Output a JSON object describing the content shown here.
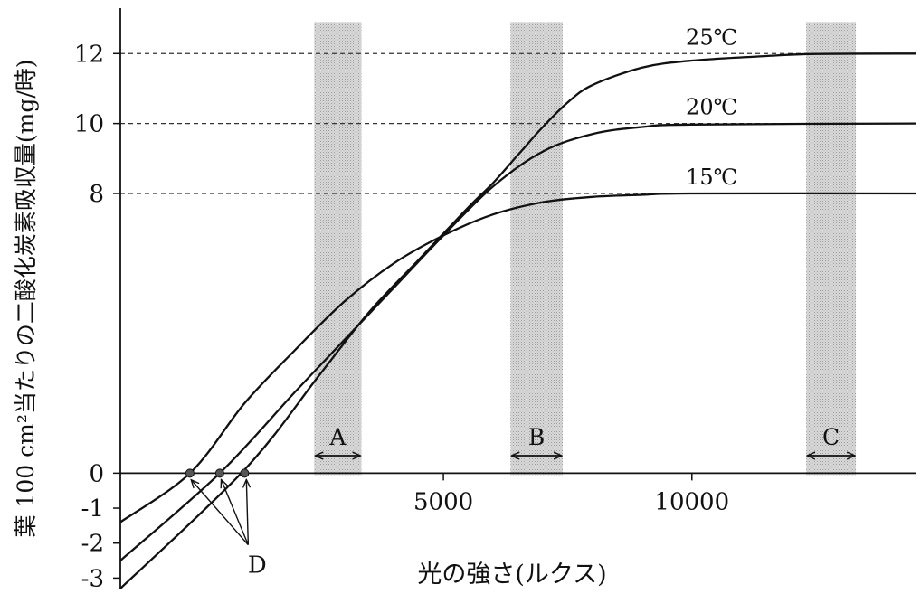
{
  "chart_data": {
    "type": "line",
    "ylabel": "葉 100 cm²当たりの二酸化炭素吸収量(mg/時)",
    "xlabel": "光の強さ(ルクス)",
    "xlim": [
      -1500,
      14500
    ],
    "ylim": [
      -3.3,
      13.3
    ],
    "x_ticks": [
      {
        "value": 5000,
        "label": "5000"
      },
      {
        "value": 10000,
        "label": "10000"
      }
    ],
    "y_ticks": [
      {
        "value": 12,
        "label": "12"
      },
      {
        "value": 10,
        "label": "10"
      },
      {
        "value": 8,
        "label": "8"
      },
      {
        "value": 0,
        "label": "0"
      },
      {
        "value": -1,
        "label": "-1"
      },
      {
        "value": -2,
        "label": "-2"
      },
      {
        "value": -3,
        "label": "-3"
      }
    ],
    "dashed_reference_lines": [
      12,
      10,
      8
    ],
    "series": [
      {
        "name": "25℃",
        "points": [
          [
            -1500,
            -3.3
          ],
          [
            1000,
            0.1
          ],
          [
            2500,
            2.8
          ],
          [
            3500,
            4.6
          ],
          [
            4500,
            6.1
          ],
          [
            5500,
            7.6
          ],
          [
            6000,
            8.3
          ],
          [
            6500,
            9.1
          ],
          [
            7000,
            9.9
          ],
          [
            7500,
            10.6
          ],
          [
            8000,
            11.1
          ],
          [
            9000,
            11.6
          ],
          [
            10000,
            11.8
          ],
          [
            11500,
            11.93
          ],
          [
            12500,
            11.99
          ],
          [
            14500,
            12.0
          ]
        ]
      },
      {
        "name": "20℃",
        "points": [
          [
            -1500,
            -2.5
          ],
          [
            500,
            0.0
          ],
          [
            2000,
            2.3
          ],
          [
            3000,
            3.8
          ],
          [
            4000,
            5.3
          ],
          [
            5000,
            6.8
          ],
          [
            6000,
            8.2
          ],
          [
            7000,
            9.2
          ],
          [
            8000,
            9.7
          ],
          [
            9000,
            9.9
          ],
          [
            10000,
            9.97
          ],
          [
            14500,
            10.0
          ]
        ]
      },
      {
        "name": "15℃",
        "points": [
          [
            -1500,
            -1.4
          ],
          [
            -100,
            0.0
          ],
          [
            1000,
            2.0
          ],
          [
            2000,
            3.5
          ],
          [
            3000,
            4.9
          ],
          [
            4000,
            6.0
          ],
          [
            5000,
            6.8
          ],
          [
            6000,
            7.4
          ],
          [
            7000,
            7.75
          ],
          [
            8000,
            7.9
          ],
          [
            9000,
            7.96
          ],
          [
            10000,
            8.0
          ],
          [
            14500,
            8.0
          ]
        ]
      }
    ],
    "bands": [
      {
        "label": "A",
        "x_range": [
          2400,
          3350
        ]
      },
      {
        "label": "B",
        "x_range": [
          6350,
          7400
        ]
      },
      {
        "label": "C",
        "x_range": [
          12300,
          13300
        ]
      }
    ],
    "compensation_points": [
      -100,
      500,
      1000
    ],
    "compensation_label": "D"
  }
}
